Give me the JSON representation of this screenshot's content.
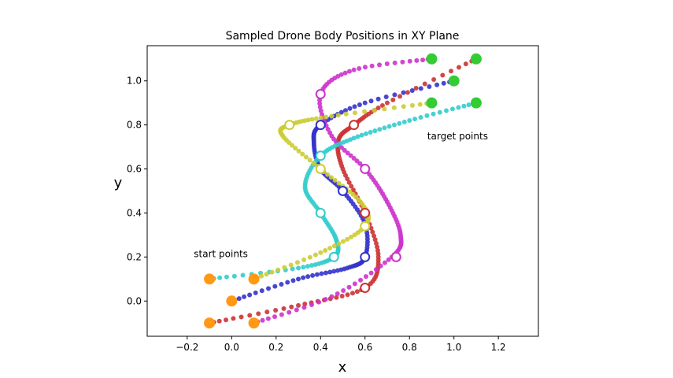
{
  "chart_data": {
    "type": "scatter",
    "title": "Sampled Drone Body Positions in XY Plane",
    "xlabel": "x",
    "ylabel": "y",
    "xlim": [
      -0.38,
      1.38
    ],
    "ylim": [
      -0.16,
      1.16
    ],
    "grid": false,
    "x_ticks": [
      -0.2,
      0.0,
      0.2,
      0.4,
      0.6,
      0.8,
      1.0,
      1.2
    ],
    "x_tick_labels": [
      "−0.2",
      "0.0",
      "0.2",
      "0.4",
      "0.6",
      "0.8",
      "1.0",
      "1.2"
    ],
    "y_ticks": [
      0.0,
      0.2,
      0.4,
      0.6,
      0.8,
      1.0
    ],
    "y_tick_labels": [
      "0.0",
      "0.2",
      "0.4",
      "0.6",
      "0.8",
      "1.0"
    ],
    "annotations": [
      {
        "text": "start points",
        "x": -0.17,
        "y": 0.2
      },
      {
        "text": "target points",
        "x": 0.88,
        "y": 0.735
      }
    ],
    "start_points": [
      [
        -0.1,
        0.1
      ],
      [
        0.1,
        0.1
      ],
      [
        0.0,
        0.0
      ],
      [
        -0.1,
        -0.1
      ],
      [
        0.1,
        -0.1
      ]
    ],
    "target_points": [
      [
        0.9,
        1.1
      ],
      [
        1.1,
        1.1
      ],
      [
        1.0,
        1.0
      ],
      [
        0.9,
        0.9
      ],
      [
        1.1,
        0.9
      ]
    ],
    "start_color": "#ff9914",
    "target_color": "#33cc33",
    "series": [
      {
        "color": "#3333cc",
        "path": [
          [
            0.0,
            0.0
          ],
          [
            0.3,
            0.1
          ],
          [
            0.52,
            0.15
          ],
          [
            0.6,
            0.2
          ],
          [
            0.6,
            0.35
          ],
          [
            0.5,
            0.5
          ],
          [
            0.4,
            0.6
          ],
          [
            0.37,
            0.72
          ],
          [
            0.4,
            0.8
          ],
          [
            0.6,
            0.9
          ],
          [
            1.0,
            1.0
          ]
        ],
        "waypoints": [
          [
            0.6,
            0.2
          ],
          [
            0.5,
            0.5
          ],
          [
            0.4,
            0.8
          ]
        ]
      },
      {
        "color": "#cc3333",
        "path": [
          [
            -0.1,
            -0.1
          ],
          [
            0.3,
            -0.02
          ],
          [
            0.6,
            0.06
          ],
          [
            0.66,
            0.2
          ],
          [
            0.6,
            0.4
          ],
          [
            0.5,
            0.6
          ],
          [
            0.48,
            0.73
          ],
          [
            0.55,
            0.8
          ],
          [
            0.7,
            0.9
          ],
          [
            1.1,
            1.1
          ]
        ],
        "waypoints": [
          [
            0.6,
            0.06
          ],
          [
            0.6,
            0.4
          ],
          [
            0.55,
            0.8
          ]
        ]
      },
      {
        "color": "#cc33cc",
        "path": [
          [
            0.1,
            -0.1
          ],
          [
            0.45,
            0.02
          ],
          [
            0.72,
            0.2
          ],
          [
            0.76,
            0.3
          ],
          [
            0.7,
            0.45
          ],
          [
            0.6,
            0.6
          ],
          [
            0.45,
            0.75
          ],
          [
            0.4,
            0.94
          ],
          [
            0.55,
            1.05
          ],
          [
            0.9,
            1.1
          ]
        ],
        "waypoints": [
          [
            0.74,
            0.2
          ],
          [
            0.6,
            0.6
          ],
          [
            0.4,
            0.94
          ]
        ]
      },
      {
        "color": "#33cccc",
        "path": [
          [
            -0.1,
            0.1
          ],
          [
            0.3,
            0.15
          ],
          [
            0.46,
            0.2
          ],
          [
            0.47,
            0.28
          ],
          [
            0.4,
            0.4
          ],
          [
            0.33,
            0.52
          ],
          [
            0.4,
            0.66
          ],
          [
            0.55,
            0.74
          ],
          [
            0.8,
            0.82
          ],
          [
            1.1,
            0.9
          ]
        ],
        "waypoints": [
          [
            0.46,
            0.2
          ],
          [
            0.4,
            0.4
          ],
          [
            0.4,
            0.66
          ]
        ]
      },
      {
        "color": "#cccc33",
        "path": [
          [
            0.1,
            0.1
          ],
          [
            0.4,
            0.22
          ],
          [
            0.6,
            0.34
          ],
          [
            0.58,
            0.45
          ],
          [
            0.4,
            0.6
          ],
          [
            0.23,
            0.75
          ],
          [
            0.26,
            0.8
          ],
          [
            0.45,
            0.84
          ],
          [
            0.9,
            0.9
          ]
        ],
        "waypoints": [
          [
            0.6,
            0.34
          ],
          [
            0.4,
            0.6
          ],
          [
            0.26,
            0.8
          ]
        ]
      }
    ]
  }
}
